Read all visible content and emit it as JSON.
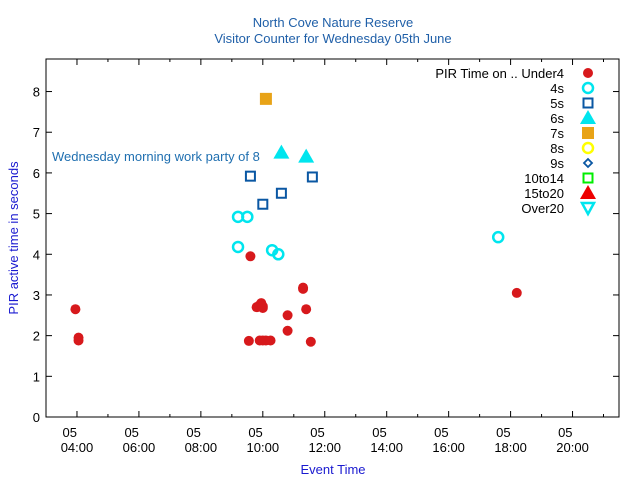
{
  "chart_data": {
    "type": "scatter",
    "title": "North Cove Nature Reserve",
    "subtitle": "Visitor Counter for Wednesday 05th June",
    "xlabel": "Event Time",
    "ylabel": "PIR active time in seconds",
    "xlim": [
      3.0,
      21.5
    ],
    "ylim": [
      0,
      8.8
    ],
    "grid": false,
    "legend_position": "top-right",
    "legend_title": "PIR Time on ..",
    "x_ticks": [
      {
        "value": 4,
        "day": "05",
        "time": "04:00"
      },
      {
        "value": 6,
        "day": "05",
        "time": "06:00"
      },
      {
        "value": 8,
        "day": "05",
        "time": "08:00"
      },
      {
        "value": 10,
        "day": "05",
        "time": "10:00"
      },
      {
        "value": 12,
        "day": "05",
        "time": "12:00"
      },
      {
        "value": 14,
        "day": "05",
        "time": "14:00"
      },
      {
        "value": 16,
        "day": "05",
        "time": "16:00"
      },
      {
        "value": 18,
        "day": "05",
        "time": "18:00"
      },
      {
        "value": 20,
        "day": "05",
        "time": "20:00"
      }
    ],
    "y_ticks": [
      "0",
      "1",
      "2",
      "3",
      "4",
      "5",
      "6",
      "7",
      "8"
    ],
    "annotation": {
      "text": "Wednesday morning work party of 8",
      "x": 3.2,
      "y": 6.4
    },
    "series": [
      {
        "name": "Under4",
        "marker": "circle",
        "color": "#d7191c",
        "points": [
          [
            3.95,
            2.65
          ],
          [
            4.05,
            1.95
          ],
          [
            4.05,
            1.88
          ],
          [
            9.6,
            3.95
          ],
          [
            9.55,
            1.87
          ],
          [
            9.8,
            2.7
          ],
          [
            9.9,
            2.75
          ],
          [
            9.95,
            2.8
          ],
          [
            10.0,
            2.68
          ],
          [
            10.0,
            2.72
          ],
          [
            9.9,
            1.88
          ],
          [
            10.0,
            1.88
          ],
          [
            10.1,
            1.88
          ],
          [
            10.25,
            1.88
          ],
          [
            10.8,
            2.5
          ],
          [
            10.8,
            2.12
          ],
          [
            11.3,
            3.18
          ],
          [
            11.3,
            3.15
          ],
          [
            11.4,
            2.65
          ],
          [
            11.55,
            1.85
          ],
          [
            18.2,
            3.05
          ]
        ]
      },
      {
        "name": "4s",
        "marker": "circle-open",
        "color": "#00e5ee",
        "points": [
          [
            9.2,
            4.92
          ],
          [
            9.5,
            4.92
          ],
          [
            9.2,
            4.18
          ],
          [
            10.3,
            4.1
          ],
          [
            10.5,
            4.0
          ],
          [
            17.6,
            4.42
          ]
        ]
      },
      {
        "name": "5s",
        "marker": "square-open",
        "color": "#0a57a3",
        "points": [
          [
            9.6,
            5.92
          ],
          [
            10.0,
            5.23
          ],
          [
            10.6,
            5.5
          ],
          [
            11.6,
            5.9
          ]
        ]
      },
      {
        "name": "6s",
        "marker": "triangle",
        "color": "#00e5ee",
        "points": [
          [
            10.6,
            6.5
          ],
          [
            11.4,
            6.4
          ]
        ]
      },
      {
        "name": "7s",
        "marker": "square",
        "color": "#e8a317",
        "points": [
          [
            10.1,
            7.82
          ]
        ]
      },
      {
        "name": "8s",
        "marker": "circle-open",
        "color": "#ffff00",
        "points": []
      },
      {
        "name": "9s",
        "marker": "diamond-open",
        "color": "#0a57a3",
        "points": []
      },
      {
        "name": "10to14",
        "marker": "square-open",
        "color": "#00ee00",
        "points": []
      },
      {
        "name": "15to20",
        "marker": "triangle",
        "color": "#ee0000",
        "points": []
      },
      {
        "name": "Over20",
        "marker": "triangle-down-open",
        "color": "#00e5ee",
        "points": []
      }
    ]
  }
}
